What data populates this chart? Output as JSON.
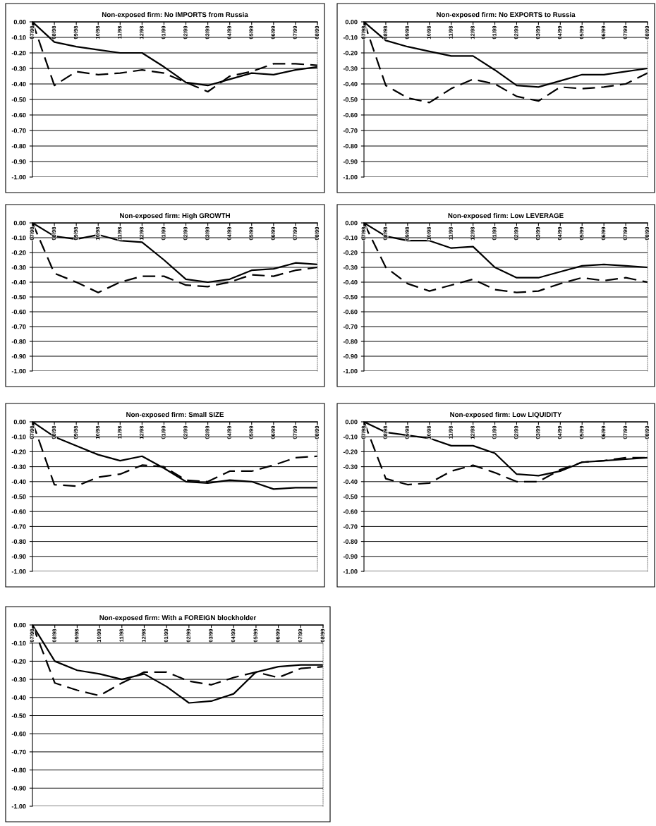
{
  "chart_data": [
    {
      "type": "line",
      "title": "Non-exposed firm: No IMPORTS from Russia",
      "categories": [
        "07/98",
        "08/98",
        "09/98",
        "10/98",
        "11/98",
        "12/98",
        "01/99",
        "02/99",
        "03/99",
        "04/99",
        "05/99",
        "06/99",
        "07/99",
        "08/99"
      ],
      "ylim": [
        -1,
        0
      ],
      "yticks": [
        {
          "value": 0,
          "label": "0.00"
        },
        {
          "value": -0.1,
          "label": "-0.10"
        },
        {
          "value": -0.2,
          "label": "-0.20"
        },
        {
          "value": -0.3,
          "label": "-0.30"
        },
        {
          "value": -0.4,
          "label": "-0.40"
        },
        {
          "value": -0.5,
          "label": "-0.50"
        },
        {
          "value": -0.6,
          "label": "-0.60"
        },
        {
          "value": -0.7,
          "label": "-0.70"
        },
        {
          "value": -0.8,
          "label": "-0.80"
        },
        {
          "value": -0.9,
          "label": "-0.90"
        },
        {
          "value": -1,
          "label": "-1.00"
        }
      ],
      "grid": "y",
      "series": [
        {
          "color": "#000000",
          "line_style": "solid",
          "values": [
            0,
            -0.13,
            -0.16,
            -0.18,
            -0.2,
            -0.2,
            -0.29,
            -0.39,
            -0.41,
            -0.37,
            -0.33,
            -0.34,
            -0.31,
            -0.29
          ]
        },
        {
          "color": "#000000",
          "line_style": "dashed",
          "values": [
            0,
            -0.41,
            -0.32,
            -0.34,
            -0.33,
            -0.31,
            -0.33,
            -0.39,
            -0.45,
            -0.35,
            -0.32,
            -0.27,
            -0.27,
            -0.28
          ]
        }
      ]
    },
    {
      "type": "line",
      "title": "Non-exposed firm: No EXPORTS to Russia",
      "categories": [
        "07/98",
        "08/98",
        "09/98",
        "10/98",
        "11/98",
        "12/98",
        "01/99",
        "02/99",
        "03/99",
        "04/99",
        "05/99",
        "06/99",
        "07/99",
        "08/99"
      ],
      "ylim": [
        -1,
        0
      ],
      "yticks": [
        {
          "value": 0,
          "label": "0.00"
        },
        {
          "value": -0.1,
          "label": "-0.10"
        },
        {
          "value": -0.2,
          "label": "-0.20"
        },
        {
          "value": -0.3,
          "label": "-0.30"
        },
        {
          "value": -0.4,
          "label": "-0.40"
        },
        {
          "value": -0.5,
          "label": "-0.50"
        },
        {
          "value": -0.6,
          "label": "-0.60"
        },
        {
          "value": -0.7,
          "label": "-0.70"
        },
        {
          "value": -0.8,
          "label": "-0.80"
        },
        {
          "value": -0.9,
          "label": "-0.90"
        },
        {
          "value": -1,
          "label": "-1.00"
        }
      ],
      "grid": "y",
      "series": [
        {
          "color": "#000000",
          "line_style": "solid",
          "values": [
            0,
            -0.12,
            -0.16,
            -0.19,
            -0.22,
            -0.22,
            -0.31,
            -0.41,
            -0.42,
            -0.38,
            -0.34,
            -0.34,
            -0.32,
            -0.3
          ]
        },
        {
          "color": "#000000",
          "line_style": "dashed",
          "values": [
            0,
            -0.41,
            -0.49,
            -0.52,
            -0.43,
            -0.37,
            -0.4,
            -0.48,
            -0.51,
            -0.42,
            -0.43,
            -0.42,
            -0.4,
            -0.33
          ]
        }
      ]
    },
    {
      "type": "line",
      "title": "Non-exposed firm: High GROWTH",
      "categories": [
        "07/98",
        "08/98",
        "09/98",
        "10/98",
        "11/98",
        "12/98",
        "01/99",
        "02/99",
        "03/99",
        "04/99",
        "05/99",
        "06/99",
        "07/99",
        "08/99"
      ],
      "ylim": [
        -1,
        0
      ],
      "yticks": [
        {
          "value": 0,
          "label": "0.00"
        },
        {
          "value": -0.1,
          "label": "-0.10"
        },
        {
          "value": -0.2,
          "label": "-0.20"
        },
        {
          "value": -0.3,
          "label": "-0.30"
        },
        {
          "value": -0.4,
          "label": "-0.40"
        },
        {
          "value": -0.5,
          "label": "-0.50"
        },
        {
          "value": -0.6,
          "label": "-0.60"
        },
        {
          "value": -0.7,
          "label": "-0.70"
        },
        {
          "value": -0.8,
          "label": "-0.80"
        },
        {
          "value": -0.9,
          "label": "-0.90"
        },
        {
          "value": -1,
          "label": "-1.00"
        }
      ],
      "grid": "y",
      "series": [
        {
          "color": "#000000",
          "line_style": "solid",
          "values": [
            0,
            -0.09,
            -0.11,
            -0.08,
            -0.12,
            -0.13,
            -0.25,
            -0.38,
            -0.4,
            -0.38,
            -0.32,
            -0.31,
            -0.27,
            -0.28
          ]
        },
        {
          "color": "#000000",
          "line_style": "dashed",
          "values": [
            0,
            -0.34,
            -0.4,
            -0.47,
            -0.4,
            -0.36,
            -0.36,
            -0.42,
            -0.43,
            -0.4,
            -0.35,
            -0.36,
            -0.32,
            -0.3
          ]
        }
      ]
    },
    {
      "type": "line",
      "title": "Non-exposed firm: Low LEVERAGE",
      "categories": [
        "07/98",
        "08/98",
        "09/98",
        "10/98",
        "11/98",
        "12/98",
        "01/99",
        "02/99",
        "03/99",
        "04/99",
        "05/99",
        "06/99",
        "07/99",
        "08/99"
      ],
      "ylim": [
        -1,
        0
      ],
      "yticks": [
        {
          "value": 0,
          "label": "0.00"
        },
        {
          "value": -0.1,
          "label": "-0.10"
        },
        {
          "value": -0.2,
          "label": "-0.20"
        },
        {
          "value": -0.3,
          "label": "-0.30"
        },
        {
          "value": -0.4,
          "label": "-0.40"
        },
        {
          "value": -0.5,
          "label": "-0.50"
        },
        {
          "value": -0.6,
          "label": "-0.60"
        },
        {
          "value": -0.7,
          "label": "-0.70"
        },
        {
          "value": -0.8,
          "label": "-0.80"
        },
        {
          "value": -0.9,
          "label": "-0.90"
        },
        {
          "value": -1,
          "label": "-1.00"
        }
      ],
      "grid": "y",
      "series": [
        {
          "color": "#000000",
          "line_style": "solid",
          "values": [
            0,
            -0.09,
            -0.12,
            -0.12,
            -0.17,
            -0.16,
            -0.3,
            -0.37,
            -0.37,
            -0.33,
            -0.29,
            -0.28,
            -0.29,
            -0.3
          ]
        },
        {
          "color": "#000000",
          "line_style": "dashed",
          "values": [
            0,
            -0.3,
            -0.41,
            -0.46,
            -0.42,
            -0.38,
            -0.45,
            -0.47,
            -0.46,
            -0.41,
            -0.37,
            -0.39,
            -0.37,
            -0.4
          ]
        }
      ]
    },
    {
      "type": "line",
      "title": "Non-exposed firm: Small SIZE",
      "categories": [
        "07/98",
        "08/98",
        "09/98",
        "10/98",
        "11/98",
        "12/98",
        "01/99",
        "02/99",
        "03/99",
        "04/99",
        "05/99",
        "06/99",
        "07/99",
        "08/99"
      ],
      "ylim": [
        -1,
        0
      ],
      "yticks": [
        {
          "value": 0,
          "label": "0.00"
        },
        {
          "value": -0.1,
          "label": "-0.10"
        },
        {
          "value": -0.2,
          "label": "-0.20"
        },
        {
          "value": -0.3,
          "label": "-0.30"
        },
        {
          "value": -0.4,
          "label": "-0.40"
        },
        {
          "value": -0.5,
          "label": "-0.50"
        },
        {
          "value": -0.6,
          "label": "-0.60"
        },
        {
          "value": -0.7,
          "label": "-0.70"
        },
        {
          "value": -0.8,
          "label": "-0.80"
        },
        {
          "value": -0.9,
          "label": "-0.90"
        },
        {
          "value": -1,
          "label": "-1.00"
        }
      ],
      "grid": "y",
      "series": [
        {
          "color": "#000000",
          "line_style": "solid",
          "values": [
            0,
            -0.1,
            -0.16,
            -0.22,
            -0.26,
            -0.23,
            -0.31,
            -0.4,
            -0.41,
            -0.39,
            -0.4,
            -0.45,
            -0.44,
            -0.44
          ]
        },
        {
          "color": "#000000",
          "line_style": "dashed",
          "values": [
            0,
            -0.42,
            -0.43,
            -0.37,
            -0.35,
            -0.29,
            -0.3,
            -0.39,
            -0.4,
            -0.33,
            -0.33,
            -0.29,
            -0.24,
            -0.23
          ]
        }
      ]
    },
    {
      "type": "line",
      "title": "Non-exposed firm: Low LIQUIDITY",
      "categories": [
        "07/98",
        "08/98",
        "09/98",
        "10/98",
        "11/98",
        "12/98",
        "01/99",
        "02/99",
        "03/99",
        "04/99",
        "05/99",
        "06/99",
        "07/99",
        "08/99"
      ],
      "ylim": [
        -1,
        0
      ],
      "yticks": [
        {
          "value": 0,
          "label": "0.00"
        },
        {
          "value": -0.1,
          "label": "-0.10"
        },
        {
          "value": -0.2,
          "label": "-0.20"
        },
        {
          "value": -0.3,
          "label": "-0.30"
        },
        {
          "value": -0.4,
          "label": "-0.40"
        },
        {
          "value": -0.5,
          "label": "-0.50"
        },
        {
          "value": -0.6,
          "label": "-0.60"
        },
        {
          "value": -0.7,
          "label": "-0.70"
        },
        {
          "value": -0.8,
          "label": "-0.80"
        },
        {
          "value": -0.9,
          "label": "-0.90"
        },
        {
          "value": -1,
          "label": "-1.00"
        }
      ],
      "grid": "y",
      "series": [
        {
          "color": "#000000",
          "line_style": "solid",
          "values": [
            0,
            -0.07,
            -0.09,
            -0.11,
            -0.16,
            -0.16,
            -0.21,
            -0.35,
            -0.36,
            -0.33,
            -0.27,
            -0.26,
            -0.25,
            -0.24
          ]
        },
        {
          "color": "#000000",
          "line_style": "dashed",
          "values": [
            0,
            -0.38,
            -0.42,
            -0.41,
            -0.33,
            -0.29,
            -0.34,
            -0.4,
            -0.4,
            -0.32,
            -0.27,
            -0.26,
            -0.24,
            -0.24
          ]
        }
      ]
    },
    {
      "type": "line",
      "title": "Non-exposed firm: With a FOREIGN blockholder",
      "categories": [
        "07/98",
        "08/98",
        "09/98",
        "10/98",
        "11/98",
        "12/98",
        "01/99",
        "02/99",
        "03/99",
        "04/99",
        "05/99",
        "06/99",
        "07/99",
        "08/99"
      ],
      "ylim": [
        -1,
        0
      ],
      "yticks": [
        {
          "value": 0,
          "label": "0.00"
        },
        {
          "value": -0.1,
          "label": "-0.10"
        },
        {
          "value": -0.2,
          "label": "-0.20"
        },
        {
          "value": -0.3,
          "label": "-0.30"
        },
        {
          "value": -0.4,
          "label": "-0.40"
        },
        {
          "value": -0.5,
          "label": "-0.50"
        },
        {
          "value": -0.6,
          "label": "-0.60"
        },
        {
          "value": -0.7,
          "label": "-0.70"
        },
        {
          "value": -0.8,
          "label": "-0.80"
        },
        {
          "value": -0.9,
          "label": "-0.90"
        },
        {
          "value": -1,
          "label": "-1.00"
        }
      ],
      "grid": "y",
      "series": [
        {
          "color": "#000000",
          "line_style": "solid",
          "values": [
            0,
            -0.2,
            -0.25,
            -0.27,
            -0.3,
            -0.27,
            -0.34,
            -0.43,
            -0.42,
            -0.38,
            -0.26,
            -0.23,
            -0.22,
            -0.22
          ]
        },
        {
          "color": "#000000",
          "line_style": "dashed",
          "values": [
            0,
            -0.32,
            -0.36,
            -0.39,
            -0.32,
            -0.26,
            -0.26,
            -0.31,
            -0.33,
            -0.29,
            -0.26,
            -0.29,
            -0.24,
            -0.23
          ]
        }
      ]
    }
  ]
}
